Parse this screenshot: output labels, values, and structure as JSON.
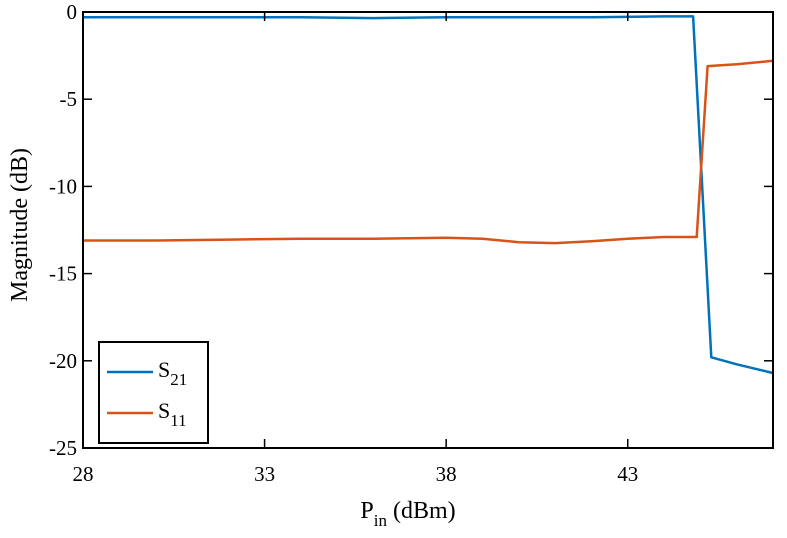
{
  "chart_data": {
    "type": "line",
    "xlabel": {
      "main": "P",
      "sub": "in",
      "unit": "(dBm)"
    },
    "ylabel": "Magnitude (dB)",
    "xlim": [
      28,
      47
    ],
    "ylim": [
      -25,
      0
    ],
    "xticks": [
      28,
      33,
      38,
      43
    ],
    "yticks": [
      0,
      -5,
      -10,
      -15,
      -20,
      -25
    ],
    "grid": false,
    "legend_position": "bottom-left",
    "series": [
      {
        "name": "S21",
        "name_main": "S",
        "name_sub": "21",
        "color": "#0072BD",
        "x": [
          28,
          30,
          32,
          34,
          36,
          38,
          40,
          42,
          44,
          44.8,
          45.3,
          46,
          47
        ],
        "y": [
          -0.3,
          -0.3,
          -0.3,
          -0.3,
          -0.35,
          -0.3,
          -0.3,
          -0.3,
          -0.25,
          -0.25,
          -19.8,
          -20.2,
          -20.7
        ]
      },
      {
        "name": "S11",
        "name_main": "S",
        "name_sub": "11",
        "color": "#D95319",
        "x": [
          28,
          30,
          32,
          34,
          36,
          38,
          39,
          40,
          41,
          42,
          43,
          44,
          44.9,
          45.2,
          46,
          47
        ],
        "y": [
          -13.1,
          -13.1,
          -13.05,
          -13.0,
          -13.0,
          -12.95,
          -13.0,
          -13.2,
          -13.25,
          -13.15,
          -13.0,
          -12.9,
          -12.9,
          -3.1,
          -3.0,
          -2.8
        ]
      }
    ]
  }
}
